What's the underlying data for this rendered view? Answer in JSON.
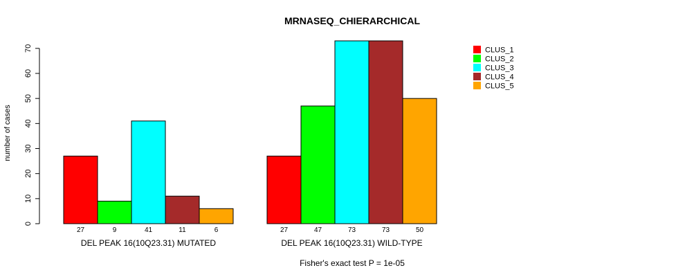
{
  "chart_data": {
    "type": "bar",
    "title": "MRNASEQ_CHIERARCHICAL",
    "ylabel": "number of cases",
    "ylim": [
      0,
      73
    ],
    "yticks": [
      0,
      10,
      20,
      30,
      40,
      50,
      60,
      70
    ],
    "footnote": "Fisher's exact test P = 1e-05",
    "legend_position": "top-right",
    "series": [
      {
        "name": "CLUS_1",
        "color": "#ff0000"
      },
      {
        "name": "CLUS_2",
        "color": "#00ff00"
      },
      {
        "name": "CLUS_3",
        "color": "#00ffff"
      },
      {
        "name": "CLUS_4",
        "color": "#a52a2a"
      },
      {
        "name": "CLUS_5",
        "color": "#ffa500"
      }
    ],
    "groups": [
      {
        "label": "DEL PEAK 16(10Q23.31) MUTATED",
        "values": [
          27,
          9,
          41,
          11,
          6
        ]
      },
      {
        "label": "DEL PEAK 16(10Q23.31) WILD-TYPE",
        "values": [
          27,
          47,
          73,
          73,
          50
        ]
      }
    ]
  }
}
